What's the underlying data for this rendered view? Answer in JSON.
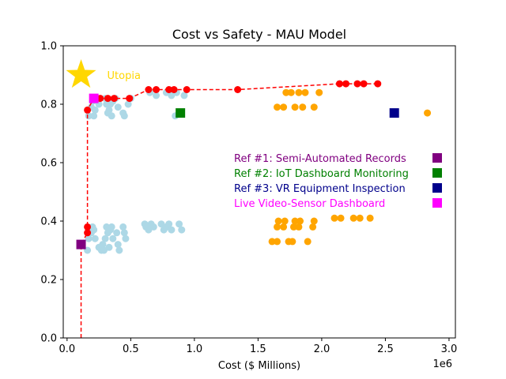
{
  "chart_data": {
    "type": "scatter",
    "title": "Cost vs Safety - MAU Model",
    "xlabel": "Cost ($ Millions)",
    "ylabel": "",
    "x_offset_label": "1e6",
    "xlim": [
      -30000,
      3050000
    ],
    "ylim": [
      0,
      1.0
    ],
    "xticks": [
      0,
      500000,
      1000000,
      1500000,
      2000000,
      2500000,
      3000000
    ],
    "xtick_labels": [
      "0.0",
      "0.5",
      "1.0",
      "1.5",
      "2.0",
      "2.5",
      "3.0"
    ],
    "yticks": [
      0,
      0.2,
      0.4,
      0.6,
      0.8,
      1.0
    ],
    "ytick_labels": [
      "0.0",
      "0.2",
      "0.4",
      "0.6",
      "0.8",
      "1.0"
    ],
    "grid": false,
    "legend_position": "center-right",
    "colors": {
      "lightblue": "#add8e6",
      "orange": "#ffa500",
      "pareto": "#ff0000",
      "utopia": "#ffd700",
      "ref1": "#800080",
      "ref2": "#008000",
      "ref3": "#00008b",
      "live": "#ff00ff"
    },
    "series": [
      {
        "color": "lightblue",
        "points": [
          [
            170000,
            0.76
          ],
          [
            190000,
            0.79
          ],
          [
            200000,
            0.81
          ],
          [
            210000,
            0.76
          ],
          [
            220000,
            0.78
          ],
          [
            240000,
            0.81
          ],
          [
            250000,
            0.8
          ],
          [
            300000,
            0.82
          ],
          [
            310000,
            0.8
          ],
          [
            320000,
            0.77
          ],
          [
            330000,
            0.78
          ],
          [
            340000,
            0.8
          ],
          [
            350000,
            0.76
          ],
          [
            360000,
            0.81
          ],
          [
            380000,
            0.82
          ],
          [
            400000,
            0.79
          ],
          [
            440000,
            0.77
          ],
          [
            450000,
            0.76
          ],
          [
            480000,
            0.8
          ],
          [
            500000,
            0.82
          ],
          [
            650000,
            0.84
          ],
          [
            700000,
            0.83
          ],
          [
            780000,
            0.84
          ],
          [
            820000,
            0.83
          ],
          [
            860000,
            0.84
          ],
          [
            920000,
            0.83
          ],
          [
            850000,
            0.76
          ],
          [
            160000,
            0.3
          ],
          [
            170000,
            0.34
          ],
          [
            190000,
            0.36
          ],
          [
            200000,
            0.38
          ],
          [
            210000,
            0.37
          ],
          [
            220000,
            0.34
          ],
          [
            250000,
            0.31
          ],
          [
            270000,
            0.3
          ],
          [
            280000,
            0.32
          ],
          [
            290000,
            0.3
          ],
          [
            300000,
            0.34
          ],
          [
            310000,
            0.38
          ],
          [
            320000,
            0.36
          ],
          [
            330000,
            0.31
          ],
          [
            340000,
            0.37
          ],
          [
            350000,
            0.38
          ],
          [
            360000,
            0.34
          ],
          [
            390000,
            0.36
          ],
          [
            400000,
            0.32
          ],
          [
            410000,
            0.3
          ],
          [
            440000,
            0.38
          ],
          [
            450000,
            0.36
          ],
          [
            460000,
            0.34
          ],
          [
            610000,
            0.39
          ],
          [
            620000,
            0.38
          ],
          [
            640000,
            0.37
          ],
          [
            660000,
            0.39
          ],
          [
            680000,
            0.38
          ],
          [
            740000,
            0.39
          ],
          [
            760000,
            0.37
          ],
          [
            780000,
            0.38
          ],
          [
            800000,
            0.39
          ],
          [
            820000,
            0.37
          ],
          [
            880000,
            0.39
          ],
          [
            900000,
            0.37
          ]
        ]
      },
      {
        "color": "orange",
        "points": [
          [
            1650000,
            0.79
          ],
          [
            1700000,
            0.79
          ],
          [
            1720000,
            0.84
          ],
          [
            1760000,
            0.84
          ],
          [
            1790000,
            0.79
          ],
          [
            1820000,
            0.84
          ],
          [
            1850000,
            0.79
          ],
          [
            1870000,
            0.84
          ],
          [
            1940000,
            0.79
          ],
          [
            1980000,
            0.84
          ],
          [
            2830000,
            0.77
          ],
          [
            1610000,
            0.33
          ],
          [
            1650000,
            0.33
          ],
          [
            1650000,
            0.38
          ],
          [
            1660000,
            0.4
          ],
          [
            1700000,
            0.38
          ],
          [
            1710000,
            0.4
          ],
          [
            1740000,
            0.33
          ],
          [
            1770000,
            0.33
          ],
          [
            1780000,
            0.38
          ],
          [
            1790000,
            0.4
          ],
          [
            1820000,
            0.38
          ],
          [
            1830000,
            0.4
          ],
          [
            1890000,
            0.33
          ],
          [
            1930000,
            0.38
          ],
          [
            1940000,
            0.4
          ],
          [
            2100000,
            0.41
          ],
          [
            2150000,
            0.41
          ],
          [
            2250000,
            0.41
          ],
          [
            2300000,
            0.41
          ],
          [
            2380000,
            0.41
          ]
        ]
      }
    ],
    "pareto_front": [
      [
        110000,
        0.0
      ],
      [
        110000,
        0.32
      ],
      [
        160000,
        0.36
      ],
      [
        160000,
        0.38
      ],
      [
        160000,
        0.78
      ],
      [
        210000,
        0.82
      ],
      [
        260000,
        0.82
      ],
      [
        320000,
        0.82
      ],
      [
        370000,
        0.82
      ],
      [
        490000,
        0.82
      ],
      [
        640000,
        0.85
      ],
      [
        700000,
        0.85
      ],
      [
        800000,
        0.85
      ],
      [
        840000,
        0.85
      ],
      [
        940000,
        0.85
      ],
      [
        1340000,
        0.85
      ],
      [
        2140000,
        0.87
      ],
      [
        2190000,
        0.87
      ],
      [
        2280000,
        0.87
      ],
      [
        2330000,
        0.87
      ],
      [
        2440000,
        0.87
      ]
    ],
    "pareto_markers": [
      [
        160000,
        0.36
      ],
      [
        160000,
        0.38
      ],
      [
        160000,
        0.78
      ],
      [
        210000,
        0.82
      ],
      [
        260000,
        0.82
      ],
      [
        320000,
        0.82
      ],
      [
        370000,
        0.82
      ],
      [
        490000,
        0.82
      ],
      [
        640000,
        0.85
      ],
      [
        700000,
        0.85
      ],
      [
        800000,
        0.85
      ],
      [
        840000,
        0.85
      ],
      [
        940000,
        0.85
      ],
      [
        1340000,
        0.85
      ],
      [
        2140000,
        0.87
      ],
      [
        2190000,
        0.87
      ],
      [
        2280000,
        0.87
      ],
      [
        2330000,
        0.87
      ],
      [
        2440000,
        0.87
      ]
    ],
    "utopia": {
      "x": 110000,
      "y": 0.9,
      "label": "Utopia"
    },
    "references": [
      {
        "label": "Ref #1: Semi-Automated Records",
        "color": "ref1",
        "x": 110000,
        "y": 0.32
      },
      {
        "label": "Ref #2: IoT Dashboard Monitoring",
        "color": "ref2",
        "x": 890000,
        "y": 0.77
      },
      {
        "label": "Ref #3: VR Equipment Inspection",
        "color": "ref3",
        "x": 2570000,
        "y": 0.77
      },
      {
        "label": "Live Video-Sensor Dashboard",
        "color": "live",
        "x": 210000,
        "y": 0.82
      }
    ]
  }
}
